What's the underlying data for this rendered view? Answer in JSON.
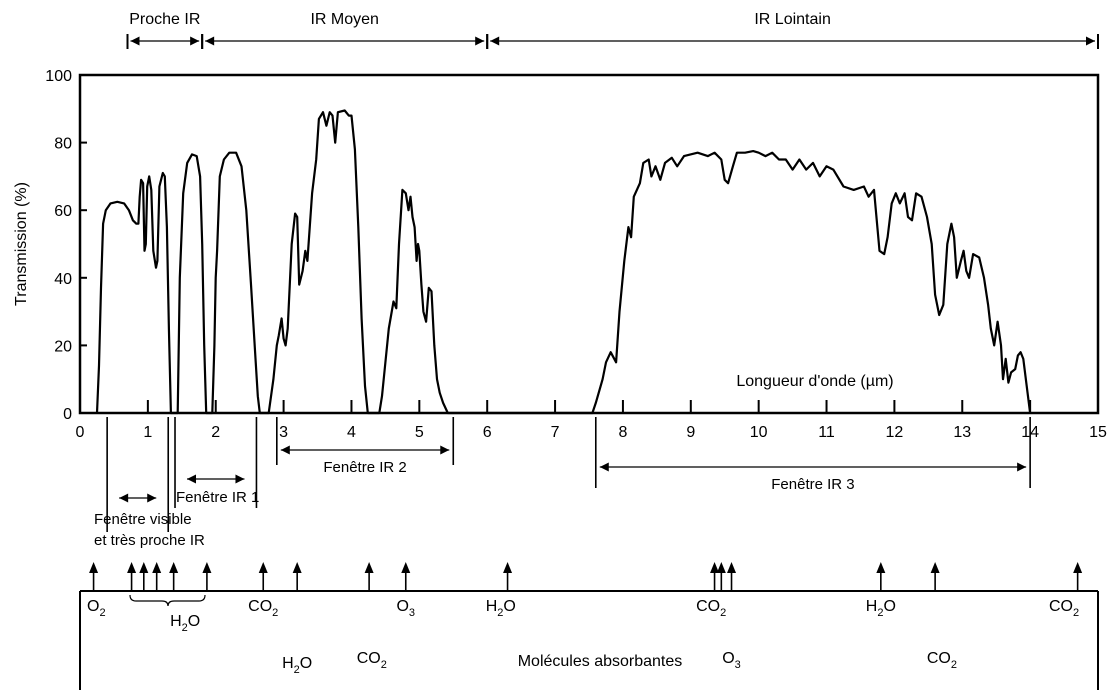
{
  "chart_data": {
    "type": "line",
    "ylabel": "Transmission (%)",
    "xlabel": "Longueur d'onde (µm)",
    "xlim": [
      0,
      15
    ],
    "ylim": [
      0,
      100
    ],
    "x_ticks": [
      "0",
      "1",
      "2",
      "3",
      "4",
      "5",
      "6",
      "7",
      "8",
      "9",
      "10",
      "11",
      "12",
      "13",
      "14",
      "15"
    ],
    "y_ticks": [
      "0",
      "20",
      "40",
      "60",
      "80",
      "100"
    ],
    "grid": false,
    "bands": [
      {
        "label": "Proche IR",
        "from": 0.7,
        "to": 1.8
      },
      {
        "label": "IR Moyen",
        "from": 1.8,
        "to": 6.0
      },
      {
        "label": "IR Lointain",
        "from": 6.0,
        "to": 15.0
      }
    ],
    "windows": [
      {
        "label": "Fenêtre visible",
        "label2": "et très proche IR",
        "from": 0.4,
        "to": 1.3
      },
      {
        "label": "Fenêtre IR 1",
        "from": 1.4,
        "to": 2.6
      },
      {
        "label": "Fenêtre IR 2",
        "from": 2.9,
        "to": 5.5
      },
      {
        "label": "Fenêtre IR 3",
        "from": 7.6,
        "to": 14.0
      }
    ],
    "molecules_title": "Molécules absorbantes",
    "absorbers": [
      {
        "base": "O",
        "sub": "2",
        "x": 0.24,
        "tier": 0
      },
      {
        "base": "H",
        "sub": "2",
        "tail": "O",
        "x": 1.55,
        "tier": 1
      },
      {
        "base": "CO",
        "sub": "2",
        "x": 2.7,
        "tier": 0
      },
      {
        "base": "H",
        "sub": "2",
        "tail": "O",
        "x": 3.2,
        "tier": 3
      },
      {
        "base": "CO",
        "sub": "2",
        "x": 4.3,
        "tier": 2
      },
      {
        "base": "O",
        "sub": "3",
        "x": 4.8,
        "tier": 0
      },
      {
        "base": "H",
        "sub": "2",
        "tail": "O",
        "x": 6.2,
        "tier": 0
      },
      {
        "base": "CO",
        "sub": "2",
        "x": 9.3,
        "tier": 0
      },
      {
        "base": "O",
        "sub": "3",
        "x": 9.6,
        "tier": 2
      },
      {
        "base": "H",
        "sub": "2",
        "tail": "O",
        "x": 11.8,
        "tier": 0
      },
      {
        "base": "CO",
        "sub": "2",
        "x": 12.7,
        "tier": 2
      },
      {
        "base": "CO",
        "sub": "2",
        "x": 14.5,
        "tier": 0
      }
    ],
    "absorption_lines_um": [
      0.2,
      0.76,
      0.94,
      1.13,
      1.38,
      1.87,
      2.7,
      3.2,
      4.26,
      4.8,
      6.3,
      9.35,
      9.45,
      9.6,
      11.8,
      12.6,
      14.7
    ],
    "series": [
      {
        "points": [
          [
            0.25,
            0
          ],
          [
            0.28,
            14
          ],
          [
            0.31,
            37
          ],
          [
            0.34,
            56
          ],
          [
            0.38,
            60
          ],
          [
            0.45,
            62
          ],
          [
            0.55,
            62.5
          ],
          [
            0.65,
            62
          ],
          [
            0.72,
            60
          ],
          [
            0.78,
            57
          ],
          [
            0.83,
            56
          ],
          [
            0.86,
            56
          ],
          [
            0.88,
            64
          ],
          [
            0.9,
            69
          ],
          [
            0.93,
            68
          ],
          [
            0.95,
            48
          ],
          [
            0.97,
            50
          ],
          [
            0.99,
            67
          ],
          [
            1.02,
            70
          ],
          [
            1.05,
            66
          ],
          [
            1.08,
            48
          ],
          [
            1.12,
            43
          ],
          [
            1.14,
            45
          ],
          [
            1.17,
            67
          ],
          [
            1.22,
            71
          ],
          [
            1.25,
            70
          ],
          [
            1.28,
            55
          ],
          [
            1.31,
            25
          ],
          [
            1.34,
            0
          ],
          [
            1.44,
            0
          ],
          [
            1.47,
            40
          ],
          [
            1.52,
            65
          ],
          [
            1.58,
            74
          ],
          [
            1.65,
            76.5
          ],
          [
            1.72,
            76
          ],
          [
            1.77,
            70
          ],
          [
            1.8,
            50
          ],
          [
            1.83,
            20
          ],
          [
            1.86,
            0
          ],
          [
            1.95,
            0
          ],
          [
            1.98,
            20
          ],
          [
            2.0,
            40
          ],
          [
            2.02,
            48
          ],
          [
            2.06,
            70
          ],
          [
            2.12,
            75
          ],
          [
            2.2,
            77
          ],
          [
            2.3,
            77
          ],
          [
            2.38,
            73
          ],
          [
            2.45,
            60
          ],
          [
            2.52,
            38
          ],
          [
            2.58,
            18
          ],
          [
            2.62,
            5
          ],
          [
            2.65,
            0
          ],
          [
            2.78,
            0
          ],
          [
            2.85,
            10
          ],
          [
            2.9,
            20
          ],
          [
            2.93,
            23
          ],
          [
            2.97,
            28
          ],
          [
            3.0,
            22
          ],
          [
            3.03,
            20
          ],
          [
            3.06,
            25
          ],
          [
            3.12,
            50
          ],
          [
            3.17,
            59
          ],
          [
            3.2,
            58
          ],
          [
            3.23,
            38
          ],
          [
            3.28,
            42
          ],
          [
            3.32,
            48
          ],
          [
            3.35,
            45
          ],
          [
            3.42,
            65
          ],
          [
            3.48,
            75
          ],
          [
            3.52,
            87
          ],
          [
            3.58,
            89
          ],
          [
            3.63,
            85
          ],
          [
            3.68,
            89
          ],
          [
            3.72,
            88
          ],
          [
            3.76,
            80
          ],
          [
            3.8,
            89
          ],
          [
            3.9,
            89.5
          ],
          [
            3.96,
            88
          ],
          [
            4.0,
            88
          ],
          [
            4.05,
            78
          ],
          [
            4.1,
            55
          ],
          [
            4.15,
            28
          ],
          [
            4.2,
            8
          ],
          [
            4.24,
            0
          ],
          [
            4.41,
            0
          ],
          [
            4.45,
            5
          ],
          [
            4.5,
            15
          ],
          [
            4.55,
            25
          ],
          [
            4.62,
            33
          ],
          [
            4.66,
            31
          ],
          [
            4.7,
            50
          ],
          [
            4.75,
            66
          ],
          [
            4.8,
            65
          ],
          [
            4.84,
            60
          ],
          [
            4.87,
            64
          ],
          [
            4.9,
            58
          ],
          [
            4.93,
            55
          ],
          [
            4.96,
            45
          ],
          [
            4.98,
            50
          ],
          [
            5.0,
            48
          ],
          [
            5.03,
            38
          ],
          [
            5.06,
            30
          ],
          [
            5.1,
            27
          ],
          [
            5.14,
            37
          ],
          [
            5.18,
            36
          ],
          [
            5.22,
            20
          ],
          [
            5.26,
            10
          ],
          [
            5.3,
            6
          ],
          [
            5.35,
            3
          ],
          [
            5.42,
            0
          ],
          [
            7.55,
            0
          ],
          [
            7.6,
            3
          ],
          [
            7.7,
            10
          ],
          [
            7.75,
            15
          ],
          [
            7.82,
            18
          ],
          [
            7.9,
            15
          ],
          [
            7.95,
            30
          ],
          [
            8.02,
            45
          ],
          [
            8.08,
            55
          ],
          [
            8.12,
            52
          ],
          [
            8.16,
            64
          ],
          [
            8.25,
            68
          ],
          [
            8.3,
            74
          ],
          [
            8.38,
            75
          ],
          [
            8.42,
            70
          ],
          [
            8.48,
            73
          ],
          [
            8.55,
            69
          ],
          [
            8.62,
            74
          ],
          [
            8.72,
            75.5
          ],
          [
            8.8,
            73
          ],
          [
            8.9,
            76
          ],
          [
            9.1,
            77
          ],
          [
            9.25,
            76
          ],
          [
            9.35,
            77
          ],
          [
            9.45,
            75
          ],
          [
            9.5,
            69
          ],
          [
            9.55,
            68
          ],
          [
            9.62,
            73
          ],
          [
            9.68,
            77
          ],
          [
            9.8,
            77
          ],
          [
            9.92,
            77.5
          ],
          [
            10.0,
            77
          ],
          [
            10.1,
            76
          ],
          [
            10.2,
            77
          ],
          [
            10.3,
            75
          ],
          [
            10.4,
            75
          ],
          [
            10.5,
            72
          ],
          [
            10.6,
            75
          ],
          [
            10.7,
            72
          ],
          [
            10.8,
            74
          ],
          [
            10.9,
            70
          ],
          [
            11.0,
            73
          ],
          [
            11.1,
            72
          ],
          [
            11.25,
            67
          ],
          [
            11.4,
            66
          ],
          [
            11.55,
            67
          ],
          [
            11.62,
            64
          ],
          [
            11.7,
            66
          ],
          [
            11.78,
            48
          ],
          [
            11.85,
            47
          ],
          [
            11.9,
            52
          ],
          [
            11.96,
            62
          ],
          [
            12.02,
            65
          ],
          [
            12.08,
            62
          ],
          [
            12.15,
            65
          ],
          [
            12.2,
            58
          ],
          [
            12.26,
            57
          ],
          [
            12.32,
            65
          ],
          [
            12.4,
            64
          ],
          [
            12.48,
            58
          ],
          [
            12.55,
            50
          ],
          [
            12.6,
            35
          ],
          [
            12.66,
            29
          ],
          [
            12.72,
            32
          ],
          [
            12.78,
            50
          ],
          [
            12.84,
            56
          ],
          [
            12.88,
            52
          ],
          [
            12.92,
            40
          ],
          [
            12.98,
            45
          ],
          [
            13.02,
            48
          ],
          [
            13.06,
            42
          ],
          [
            13.1,
            40
          ],
          [
            13.16,
            47
          ],
          [
            13.25,
            46
          ],
          [
            13.32,
            40
          ],
          [
            13.38,
            32
          ],
          [
            13.42,
            25
          ],
          [
            13.47,
            20
          ],
          [
            13.52,
            27
          ],
          [
            13.57,
            20
          ],
          [
            13.6,
            10
          ],
          [
            13.64,
            16
          ],
          [
            13.68,
            9
          ],
          [
            13.72,
            12
          ],
          [
            13.78,
            13
          ],
          [
            13.82,
            17
          ],
          [
            13.86,
            18
          ],
          [
            13.9,
            16
          ],
          [
            13.95,
            8
          ],
          [
            14.0,
            0
          ]
        ]
      }
    ]
  }
}
